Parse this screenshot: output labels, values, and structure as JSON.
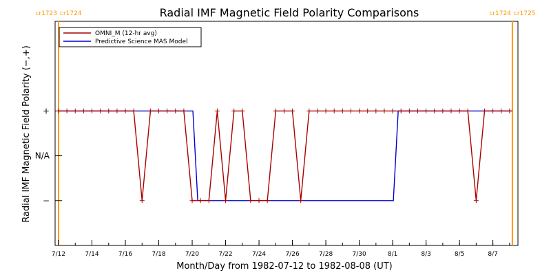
{
  "chart_data": {
    "type": "line",
    "title": "Radial IMF Magnetic Field Polarity Comparisons",
    "xlabel": "Month/Day from 1982-07-12 to 1982-08-08 (UT)",
    "ylabel": "Radial IMF Magnetic Field Polarity (−,+)",
    "x_axis": {
      "start": "1982-07-12",
      "end": "1982-08-08",
      "tick_labels": [
        "7/12",
        "7/14",
        "7/16",
        "7/18",
        "7/20",
        "7/22",
        "7/24",
        "7/26",
        "7/28",
        "7/30",
        "8/1",
        "8/3",
        "8/5",
        "8/7"
      ],
      "tick_dates": [
        "1982-07-12",
        "1982-07-14",
        "1982-07-16",
        "1982-07-18",
        "1982-07-20",
        "1982-07-22",
        "1982-07-24",
        "1982-07-26",
        "1982-07-28",
        "1982-07-30",
        "1982-08-01",
        "1982-08-03",
        "1982-08-05",
        "1982-08-07"
      ]
    },
    "y_axis": {
      "tick_labels": [
        "+",
        "N/A",
        "−"
      ],
      "tick_values": [
        1,
        0,
        -1
      ],
      "ylim": [
        -2,
        3
      ]
    },
    "carrington_markers": [
      {
        "label_left": "cr1723",
        "label_right": "cr1724",
        "date": "1982-07-12T00:00",
        "color": "#ff9900"
      },
      {
        "label_left": "cr1724",
        "label_right": "cr1725",
        "date": "1982-08-08T04:00",
        "color": "#ff9900"
      }
    ],
    "legend": "top-left",
    "series": [
      {
        "name": "OMNI_M (12-hr avg)",
        "color": "#aa0000",
        "marker": "plus",
        "points": [
          [
            "1982-07-12T00:00",
            1
          ],
          [
            "1982-07-12T12:00",
            1
          ],
          [
            "1982-07-13T00:00",
            1
          ],
          [
            "1982-07-13T12:00",
            1
          ],
          [
            "1982-07-14T00:00",
            1
          ],
          [
            "1982-07-14T12:00",
            1
          ],
          [
            "1982-07-15T00:00",
            1
          ],
          [
            "1982-07-15T12:00",
            1
          ],
          [
            "1982-07-16T00:00",
            1
          ],
          [
            "1982-07-16T12:00",
            1
          ],
          [
            "1982-07-17T00:00",
            -1
          ],
          [
            "1982-07-17T12:00",
            1
          ],
          [
            "1982-07-18T00:00",
            1
          ],
          [
            "1982-07-18T12:00",
            1
          ],
          [
            "1982-07-19T00:00",
            1
          ],
          [
            "1982-07-19T12:00",
            1
          ],
          [
            "1982-07-20T00:00",
            -1
          ],
          [
            "1982-07-20T12:00",
            -1
          ],
          [
            "1982-07-21T00:00",
            -1
          ],
          [
            "1982-07-21T12:00",
            1
          ],
          [
            "1982-07-22T00:00",
            -1
          ],
          [
            "1982-07-22T12:00",
            1
          ],
          [
            "1982-07-23T00:00",
            1
          ],
          [
            "1982-07-23T12:00",
            -1
          ],
          [
            "1982-07-24T00:00",
            -1
          ],
          [
            "1982-07-24T12:00",
            -1
          ],
          [
            "1982-07-25T00:00",
            1
          ],
          [
            "1982-07-25T12:00",
            1
          ],
          [
            "1982-07-26T00:00",
            1
          ],
          [
            "1982-07-26T12:00",
            -1
          ],
          [
            "1982-07-27T00:00",
            1
          ],
          [
            "1982-07-27T12:00",
            1
          ],
          [
            "1982-07-28T00:00",
            1
          ],
          [
            "1982-07-28T12:00",
            1
          ],
          [
            "1982-07-29T00:00",
            1
          ],
          [
            "1982-07-29T12:00",
            1
          ],
          [
            "1982-07-30T00:00",
            1
          ],
          [
            "1982-07-30T12:00",
            1
          ],
          [
            "1982-07-31T00:00",
            1
          ],
          [
            "1982-07-31T12:00",
            1
          ],
          [
            "1982-08-01T00:00",
            1
          ],
          [
            "1982-08-01T12:00",
            1
          ],
          [
            "1982-08-02T00:00",
            1
          ],
          [
            "1982-08-02T12:00",
            1
          ],
          [
            "1982-08-03T00:00",
            1
          ],
          [
            "1982-08-03T12:00",
            1
          ],
          [
            "1982-08-04T00:00",
            1
          ],
          [
            "1982-08-04T12:00",
            1
          ],
          [
            "1982-08-05T00:00",
            1
          ],
          [
            "1982-08-05T12:00",
            1
          ],
          [
            "1982-08-06T00:00",
            -1
          ],
          [
            "1982-08-06T12:00",
            1
          ],
          [
            "1982-08-07T00:00",
            1
          ],
          [
            "1982-08-07T12:00",
            1
          ],
          [
            "1982-08-08T00:00",
            1
          ]
        ]
      },
      {
        "name": "Predictive Science MAS Model",
        "color": "#0000cc",
        "marker": "none",
        "points": [
          [
            "1982-07-12T00:00",
            1
          ],
          [
            "1982-07-20T01:00",
            1
          ],
          [
            "1982-07-20T08:00",
            -1
          ],
          [
            "1982-08-01T01:00",
            -1
          ],
          [
            "1982-08-01T08:00",
            1
          ],
          [
            "1982-08-08T04:00",
            1
          ]
        ]
      }
    ]
  }
}
